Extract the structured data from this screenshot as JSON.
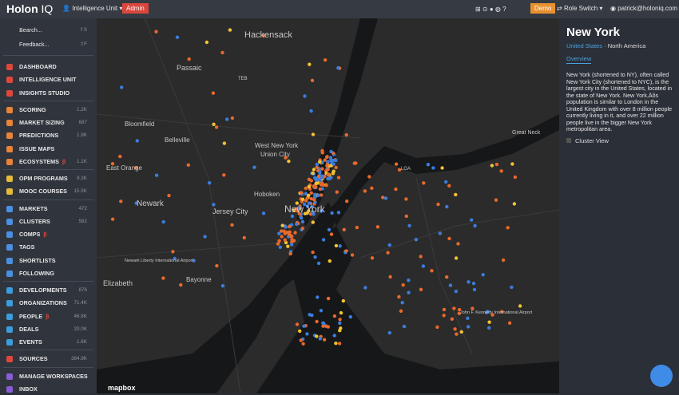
{
  "header": {
    "logo": "Holon",
    "logo_accent": "IQ",
    "workspace": "Intelligence Unit",
    "admin": "Admin",
    "demo": "Demo",
    "role_switch": "Role Switch",
    "user": "patrick@holoniq.com"
  },
  "sidebar": {
    "search": "Search...",
    "search_key": "⇧S",
    "feedback": "Feedback...",
    "feedback_key": "⇧F",
    "items": [
      {
        "label": "DASHBOARD"
      },
      {
        "label": "INTELLIGENCE UNIT"
      },
      {
        "label": "INSIGHTS STUDIO"
      },
      {
        "label": "SCORING",
        "count": "1.2K"
      },
      {
        "label": "MARKET SIZING",
        "count": "687"
      },
      {
        "label": "PREDICTIONS",
        "count": "1.9K"
      },
      {
        "label": "ISSUE MAPS"
      },
      {
        "label": "ECOSYSTEMS",
        "badge": "β",
        "count": "1.1K"
      },
      {
        "label": "OPM PROGRAMS",
        "count": "9.3K"
      },
      {
        "label": "MOOC COURSES",
        "count": "15.5K"
      },
      {
        "label": "MARKETS",
        "count": "472"
      },
      {
        "label": "CLUSTERS",
        "count": "582"
      },
      {
        "label": "COMPS",
        "badge": "β"
      },
      {
        "label": "TAGS"
      },
      {
        "label": "SHORTLISTS"
      },
      {
        "label": "FOLLOWING"
      },
      {
        "label": "DEVELOPMENTS",
        "count": "876"
      },
      {
        "label": "ORGANIZATIONS",
        "count": "71.4K"
      },
      {
        "label": "PEOPLE",
        "badge": "β",
        "count": "46.8K"
      },
      {
        "label": "DEALS",
        "count": "20.0K"
      },
      {
        "label": "EVENTS",
        "count": "1.6K"
      },
      {
        "label": "SOURCES",
        "count": "384.9K"
      },
      {
        "label": "MANAGE WORKSPACES"
      },
      {
        "label": "INBOX"
      }
    ]
  },
  "map": {
    "labels": [
      "Hackensack",
      "Passaic",
      "TEB",
      "Bloomfield",
      "Belleville",
      "East Orange",
      "Newark",
      "Newark Liberty International Airport",
      "Elizabeth",
      "Bayonne",
      "Jersey City",
      "Hoboken",
      "West New York",
      "Union City",
      "New York",
      "LGA",
      "Great Neck",
      "John F. Kennedy International Airport"
    ],
    "attribution": "mapbox"
  },
  "panel": {
    "title": "New York",
    "country": "United States",
    "separator": "·",
    "region": "North America",
    "tab": "Overview",
    "description": "New York (shortened to NY), often called New York City (shortened to NYC), is the largest city in the United States, located in the state of New York. New York,Äôs population is similar to London in the United Kingdom with over 8 million people currently living in it, and over 22 million people live in the bigger New York metropolitan area.",
    "cluster_view": "Cluster View"
  }
}
